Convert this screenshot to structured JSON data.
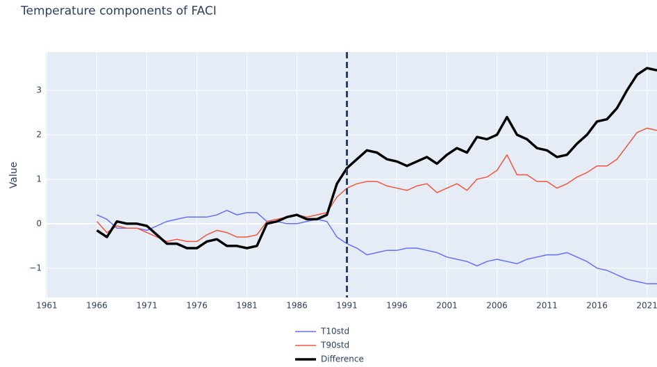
{
  "chart_data": {
    "type": "line",
    "title": "Temperature components of FACI",
    "y_label": "Value",
    "x": [
      1966,
      1967,
      1968,
      1969,
      1970,
      1971,
      1972,
      1973,
      1974,
      1975,
      1976,
      1977,
      1978,
      1979,
      1980,
      1981,
      1982,
      1983,
      1984,
      1985,
      1986,
      1987,
      1988,
      1989,
      1990,
      1991,
      1992,
      1993,
      1994,
      1995,
      1996,
      1997,
      1998,
      1999,
      2000,
      2001,
      2002,
      2003,
      2004,
      2005,
      2006,
      2007,
      2008,
      2009,
      2010,
      2011,
      2012,
      2013,
      2014,
      2015,
      2016,
      2017,
      2018,
      2019,
      2020,
      2021,
      2022
    ],
    "series": [
      {
        "name": "T10std",
        "color": "#636efa",
        "width": 1.5,
        "values": [
          0.2,
          0.1,
          -0.1,
          -0.1,
          -0.1,
          -0.15,
          -0.05,
          0.05,
          0.1,
          0.15,
          0.15,
          0.15,
          0.2,
          0.3,
          0.2,
          0.25,
          0.25,
          0.05,
          0.05,
          0.0,
          0.0,
          0.05,
          0.1,
          0.05,
          -0.3,
          -0.45,
          -0.55,
          -0.7,
          -0.65,
          -0.6,
          -0.6,
          -0.55,
          -0.55,
          -0.6,
          -0.65,
          -0.75,
          -0.8,
          -0.85,
          -0.95,
          -0.85,
          -0.8,
          -0.85,
          -0.9,
          -0.8,
          -0.75,
          -0.7,
          -0.7,
          -0.65,
          -0.75,
          -0.85,
          -1.0,
          -1.05,
          -1.15,
          -1.25,
          -1.3,
          -1.35,
          -1.35
        ]
      },
      {
        "name": "T90std",
        "color": "#ef553b",
        "width": 1.5,
        "values": [
          0.05,
          -0.2,
          -0.05,
          -0.1,
          -0.1,
          -0.2,
          -0.3,
          -0.4,
          -0.35,
          -0.4,
          -0.4,
          -0.25,
          -0.15,
          -0.2,
          -0.3,
          -0.3,
          -0.25,
          0.05,
          0.1,
          0.15,
          0.2,
          0.15,
          0.2,
          0.25,
          0.6,
          0.8,
          0.9,
          0.95,
          0.95,
          0.85,
          0.8,
          0.75,
          0.85,
          0.9,
          0.7,
          0.8,
          0.9,
          0.75,
          1.0,
          1.05,
          1.2,
          1.55,
          1.1,
          1.1,
          0.95,
          0.95,
          0.8,
          0.9,
          1.05,
          1.15,
          1.3,
          1.3,
          1.45,
          1.75,
          2.05,
          2.15,
          2.1
        ]
      },
      {
        "name": "Difference",
        "color": "#000000",
        "width": 3.5,
        "values": [
          -0.15,
          -0.3,
          0.05,
          0,
          0,
          -0.05,
          -0.25,
          -0.45,
          -0.45,
          -0.55,
          -0.55,
          -0.4,
          -0.35,
          -0.5,
          -0.5,
          -0.55,
          -0.5,
          0,
          0.05,
          0.15,
          0.2,
          0.1,
          0.1,
          0.2,
          0.9,
          1.25,
          1.45,
          1.65,
          1.6,
          1.45,
          1.4,
          1.3,
          1.4,
          1.5,
          1.35,
          1.55,
          1.7,
          1.6,
          1.95,
          1.9,
          2.0,
          2.4,
          2.0,
          1.9,
          1.7,
          1.65,
          1.5,
          1.55,
          1.8,
          2.0,
          2.3,
          2.35,
          2.6,
          3.0,
          3.35,
          3.5,
          3.45
        ]
      }
    ],
    "vline": 1991,
    "xlim": [
      1960.9,
      2022
    ],
    "xticks": [
      1961,
      1966,
      1971,
      1976,
      1981,
      1986,
      1991,
      1996,
      2001,
      2006,
      2011,
      2016,
      2021
    ],
    "ylim": [
      -1.66,
      3.86
    ],
    "yticks": [
      {
        "value": -1,
        "label": "−1"
      },
      0,
      1,
      2,
      3
    ],
    "grid": true,
    "legend": "bottom"
  }
}
